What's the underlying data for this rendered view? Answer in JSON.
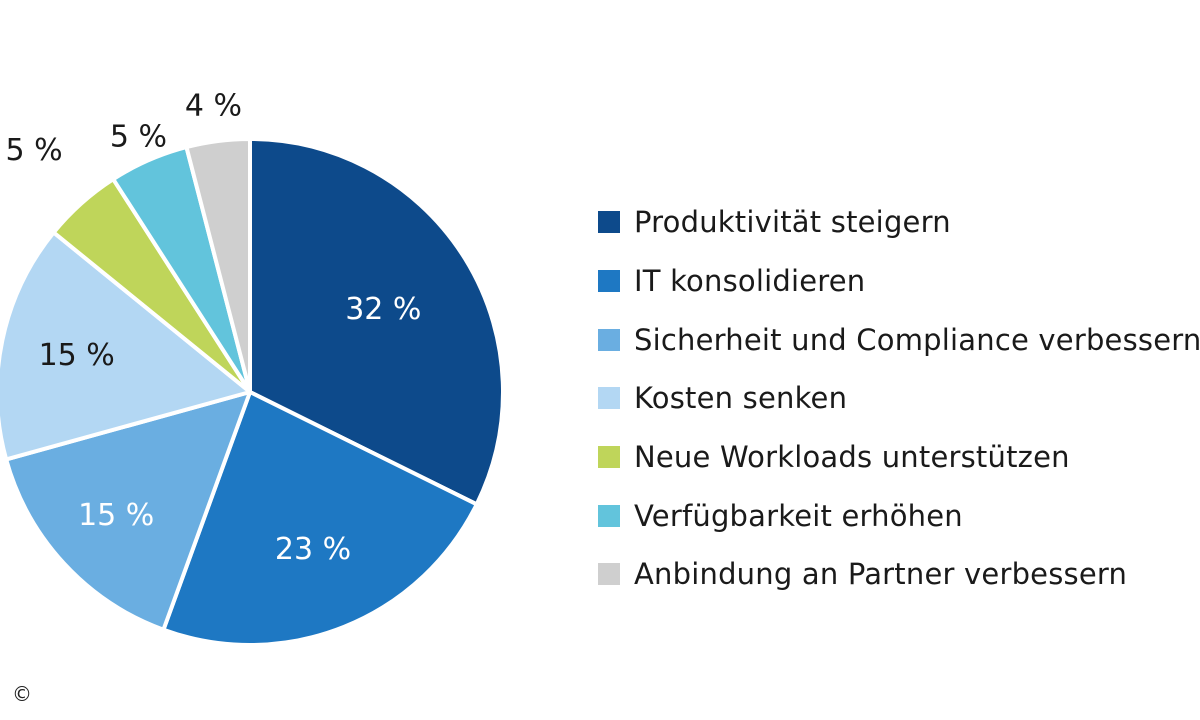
{
  "chart_data": {
    "type": "pie",
    "slices": [
      {
        "name": "Produktivität steigern",
        "value": 32,
        "label": "32 %",
        "color": "#0d4a8b"
      },
      {
        "name": "IT konsolidieren",
        "value": 23,
        "label": "23 %",
        "color": "#1e78c3"
      },
      {
        "name": "Sicherheit und Compliance verbessern",
        "value": 15,
        "label": "15 %",
        "color": "#6aaee1"
      },
      {
        "name": "Kosten senken",
        "value": 15,
        "label": "15 %",
        "color": "#b3d7f3"
      },
      {
        "name": "Neue Workloads unterstützen",
        "value": 5,
        "label": "5 %",
        "color": "#bfd55a"
      },
      {
        "name": "Verfügbarkeit erhöhen",
        "value": 5,
        "label": "5 %",
        "color": "#62c4dc"
      },
      {
        "name": "Anbindung an Partner verbessern",
        "value": 4,
        "label": "4 %",
        "color": "#cfcfcf"
      }
    ],
    "legend_position": "right"
  },
  "copyright": "©"
}
